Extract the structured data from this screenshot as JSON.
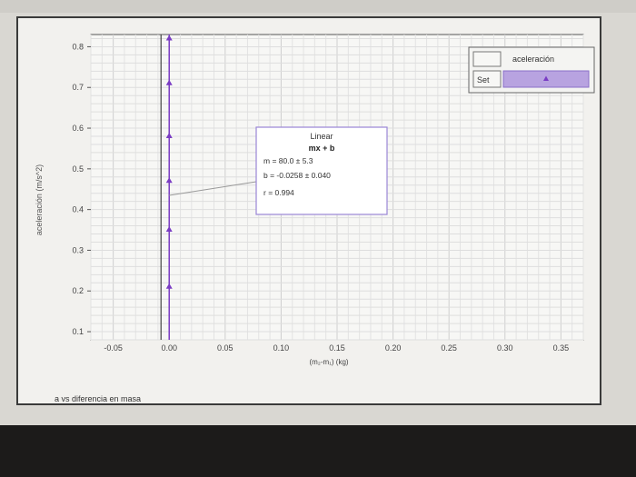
{
  "chart_data": {
    "type": "scatter",
    "ylabel": "aceleración (m/s^2)",
    "xlabel": "(m₂-m₁) (kg)",
    "xlim": [
      -0.07,
      0.37
    ],
    "ylim": [
      0.08,
      0.83
    ],
    "x_ticks": [
      "-0.05",
      "0.00",
      "0.05",
      "0.10",
      "0.15",
      "0.20",
      "0.25",
      "0.30",
      "0.35"
    ],
    "y_ticks": [
      "0.1",
      "0.2",
      "0.3",
      "0.4",
      "0.5",
      "0.6",
      "0.7",
      "0.8"
    ],
    "grid": true,
    "legend_position": "top-right",
    "series": [
      {
        "name": "aceleración",
        "color": "#7a3cc4",
        "x": [
          0.0,
          0.0,
          0.0,
          0.0,
          0.0,
          0.0
        ],
        "y": [
          0.21,
          0.35,
          0.47,
          0.58,
          0.71,
          0.82
        ]
      }
    ],
    "fit": {
      "title": "Linear",
      "equation": "mx + b",
      "m_line": "m = 80.0      ± 5.3",
      "b_line": "b = -0.0258 ± 0.040",
      "r_line": "r = 0.994"
    },
    "legend": {
      "header": "aceleración",
      "set_label": "Set"
    },
    "footer": "a vs diferencia en masa"
  }
}
